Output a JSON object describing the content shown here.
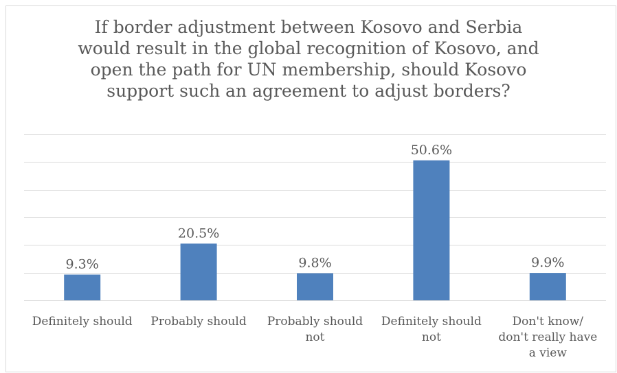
{
  "chart_data": {
    "type": "bar",
    "title_lines": [
      "If border adjustment between Kosovo and Serbia",
      "would result in the global recognition of Kosovo, and",
      "open the path for UN membership, should Kosovo",
      "support such an agreement to adjust borders?"
    ],
    "categories": [
      [
        "Definitely should"
      ],
      [
        "Probably should"
      ],
      [
        "Probably should",
        "not"
      ],
      [
        "Definitely should",
        "not"
      ],
      [
        "Don't know/",
        "don't really have",
        "a view"
      ]
    ],
    "values": [
      9.3,
      20.5,
      9.8,
      50.6,
      9.9
    ],
    "data_labels": [
      "9.3%",
      "20.5%",
      "9.8%",
      "50.6%",
      "9.9%"
    ],
    "ylim": [
      0,
      60
    ],
    "gridline_step": 10,
    "grid": true,
    "bar_color": "#4f81bd",
    "grid_color": "#d9d9d9",
    "text_color": "#595959"
  }
}
